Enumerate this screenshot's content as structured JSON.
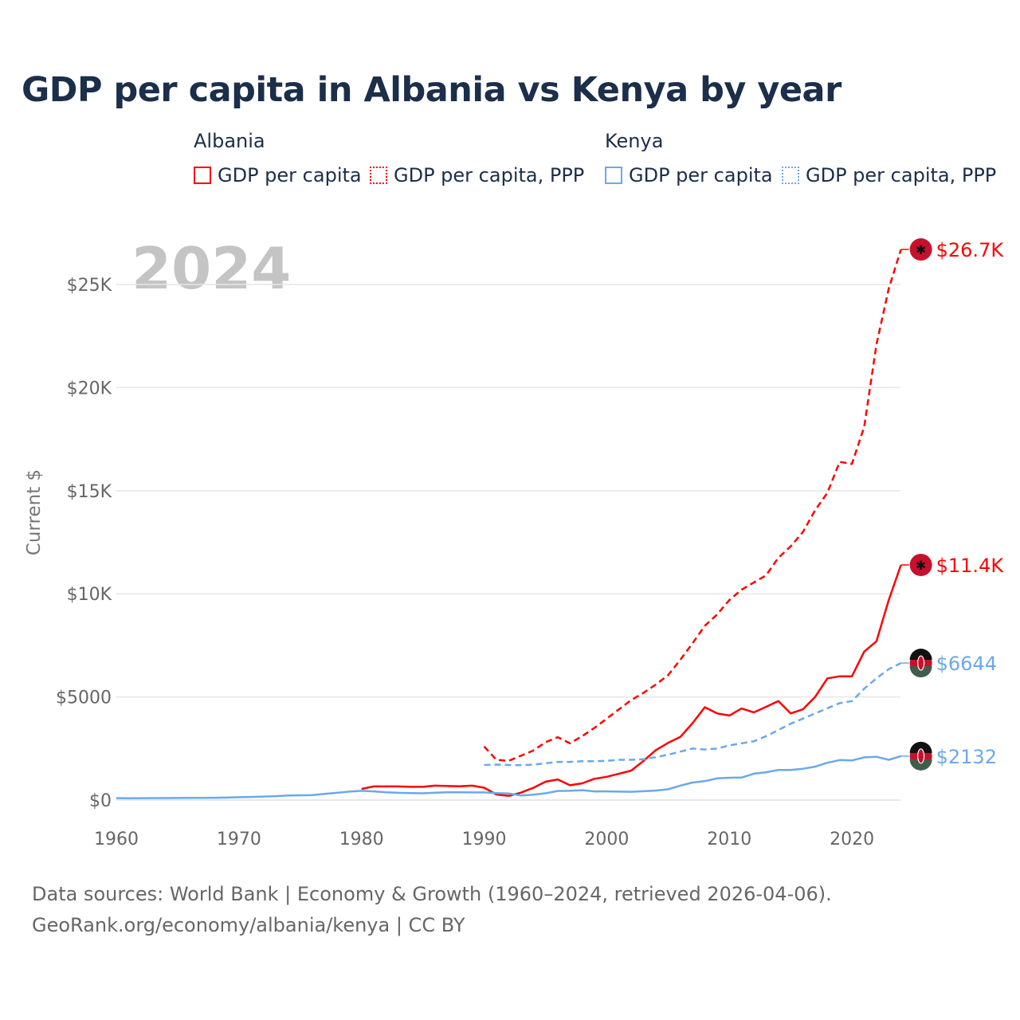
{
  "title": "GDP per capita in Albania vs Kenya by year",
  "legend": {
    "groups": [
      {
        "name": "Albania",
        "items": [
          "GDP per capita",
          "GDP per capita, PPP"
        ]
      },
      {
        "name": "Kenya",
        "items": [
          "GDP per capita",
          "GDP per capita, PPP"
        ]
      }
    ]
  },
  "footer": {
    "line1": "Data sources: World Bank | Economy & Growth (1960–2024, retrieved 2026-04-06).",
    "line2": "GeoRank.org/economy/albania/kenya | CC BY"
  },
  "chart_data": {
    "type": "line",
    "title": "GDP per capita in Albania vs Kenya by year",
    "ylabel": "Current $",
    "xlabel": "",
    "year_label": "2024",
    "xlim": [
      1960,
      2024
    ],
    "ylim": [
      0,
      27000
    ],
    "x_ticks": [
      "1960",
      "1970",
      "1980",
      "1990",
      "2000",
      "2010",
      "2020"
    ],
    "x_tick_values": [
      1960,
      1970,
      1980,
      1990,
      2000,
      2010,
      2020
    ],
    "y_ticks": [
      "$0",
      "$5000",
      "$10K",
      "$15K",
      "$20K",
      "$25K"
    ],
    "y_tick_values": [
      0,
      5000,
      10000,
      15000,
      20000,
      25000
    ],
    "grid": true,
    "series": [
      {
        "name": "Albania GDP per capita",
        "color": "#ff0000",
        "dash": false,
        "flag": "albania-flag",
        "end_label": "$11.4K",
        "start": 1980,
        "values": [
          540,
          660,
          660,
          660,
          640,
          640,
          700,
          680,
          670,
          700,
          600,
          270,
          200,
          360,
          590,
          890,
          1000,
          720,
          810,
          1030,
          1130,
          1280,
          1430,
          1900,
          2420,
          2770,
          3060,
          3730,
          4500,
          4200,
          4100,
          4440,
          4250,
          4520,
          4800,
          4200,
          4400,
          5000,
          5900,
          6000,
          6000,
          7200,
          7700,
          9700,
          11400
        ]
      },
      {
        "name": "Albania GDP per capita, PPP",
        "color": "#ff0000",
        "dash": true,
        "flag": "albania-flag",
        "end_label": "$26.7K",
        "start": 1990,
        "values": [
          2600,
          1950,
          1900,
          2150,
          2400,
          2800,
          3050,
          2750,
          3100,
          3500,
          3950,
          4400,
          4850,
          5200,
          5600,
          6050,
          6800,
          7600,
          8450,
          9000,
          9700,
          10200,
          10550,
          10900,
          11750,
          12300,
          13000,
          14050,
          14900,
          16400,
          16300,
          18100,
          22100,
          24800,
          26700
        ]
      },
      {
        "name": "Kenya GDP per capita",
        "color": "#6aa9ea",
        "dash": false,
        "flag": "kenya-flag",
        "end_label": "$2132",
        "start": 1960,
        "values": [
          95,
          90,
          92,
          95,
          98,
          100,
          105,
          108,
          112,
          118,
          140,
          150,
          170,
          190,
          220,
          230,
          240,
          300,
          350,
          410,
          450,
          420,
          380,
          350,
          340,
          330,
          360,
          380,
          380,
          370,
          370,
          340,
          320,
          220,
          260,
          330,
          440,
          450,
          480,
          420,
          420,
          410,
          400,
          430,
          460,
          520,
          700,
          850,
          920,
          1050,
          1080,
          1090,
          1280,
          1350,
          1460,
          1460,
          1520,
          1620,
          1810,
          1940,
          1920,
          2070,
          2100,
          1950,
          2132
        ]
      },
      {
        "name": "Kenya GDP per capita, PPP",
        "color": "#6aa9ea",
        "dash": true,
        "flag": "kenya-flag",
        "end_label": "$6644",
        "start": 1990,
        "values": [
          1700,
          1720,
          1700,
          1690,
          1720,
          1780,
          1850,
          1850,
          1880,
          1880,
          1900,
          1950,
          1950,
          1980,
          2080,
          2200,
          2350,
          2500,
          2450,
          2500,
          2650,
          2750,
          2850,
          3100,
          3400,
          3700,
          3950,
          4200,
          4450,
          4700,
          4800,
          5400,
          5900,
          6350,
          6644
        ]
      }
    ]
  }
}
